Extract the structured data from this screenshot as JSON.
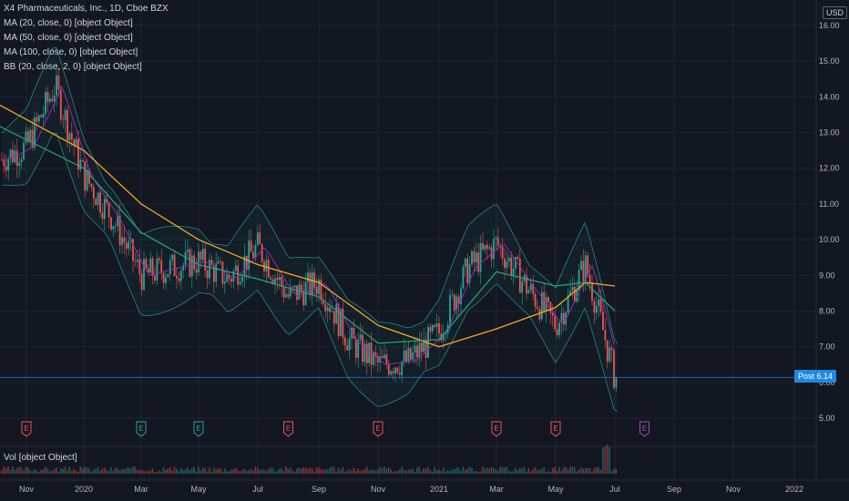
{
  "legend": {
    "title": "X4 Pharmaceuticals, Inc., 1D, Cboe BZX",
    "ma20": "MA (20, close, 0) [object Object]",
    "ma50": "MA (50, close, 0) [object Object]",
    "ma100": "MA (100, close, 0) [object Object]",
    "bb": "BB (20, close, 2, 0) [object Object]"
  },
  "volume_label": "Vol [object Object]",
  "currency": "USD",
  "price_tag": {
    "label": "Post",
    "value": "6.14"
  },
  "colors": {
    "background": "#131722",
    "grid": "#1f2433",
    "up": "#26a69a",
    "down": "#ef5350",
    "ma20": "#9c27b0",
    "ma50": "#26a17b",
    "ma100": "#f5a623",
    "bb": "#26a69a",
    "price_line": "#1e88e5",
    "earnings_red": "#ef5350",
    "earnings_green": "#26a69a",
    "earnings_purple": "#ab47bc"
  },
  "chart_data": {
    "type": "candlestick",
    "ylim": [
      5.0,
      16.0
    ],
    "y_ticks": [
      "16.00",
      "15.00",
      "14.00",
      "13.00",
      "12.00",
      "11.00",
      "10.00",
      "9.00",
      "8.00",
      "7.00",
      "6.00",
      "5.00"
    ],
    "x_ticks": [
      "Nov",
      "2020",
      "Mar",
      "May",
      "Jul",
      "Sep",
      "Nov",
      "2021",
      "Mar",
      "May",
      "Jul",
      "Sep",
      "Nov",
      "2022"
    ],
    "price_series": [
      {
        "date": "2019-10",
        "value": 12.2
      },
      {
        "date": "2019-11",
        "value": 12.6
      },
      {
        "date": "2019-12",
        "value": 14.3
      },
      {
        "date": "2020-01",
        "value": 11.8
      },
      {
        "date": "2020-02",
        "value": 10.6
      },
      {
        "date": "2020-03",
        "value": 9.0
      },
      {
        "date": "2020-04",
        "value": 9.2
      },
      {
        "date": "2020-05",
        "value": 9.4
      },
      {
        "date": "2020-06",
        "value": 8.9
      },
      {
        "date": "2020-07",
        "value": 9.8
      },
      {
        "date": "2020-08",
        "value": 8.4
      },
      {
        "date": "2020-09",
        "value": 8.8
      },
      {
        "date": "2020-10",
        "value": 7.2
      },
      {
        "date": "2020-11",
        "value": 6.5
      },
      {
        "date": "2020-12",
        "value": 6.6
      },
      {
        "date": "2021-01",
        "value": 7.4
      },
      {
        "date": "2021-02",
        "value": 9.2
      },
      {
        "date": "2021-03",
        "value": 9.9
      },
      {
        "date": "2021-04",
        "value": 8.7
      },
      {
        "date": "2021-05",
        "value": 7.6
      },
      {
        "date": "2021-06",
        "value": 9.3
      },
      {
        "date": "2021-06-15",
        "value": 7.9
      },
      {
        "date": "2021-07",
        "value": 6.14
      }
    ],
    "ma100_series": [
      {
        "date": "2019-10",
        "value": 13.8
      },
      {
        "date": "2020-01",
        "value": 12.5
      },
      {
        "date": "2020-03",
        "value": 11.0
      },
      {
        "date": "2020-05",
        "value": 10.0
      },
      {
        "date": "2020-07",
        "value": 9.3
      },
      {
        "date": "2020-09",
        "value": 8.8
      },
      {
        "date": "2020-11",
        "value": 7.6
      },
      {
        "date": "2021-01",
        "value": 7.0
      },
      {
        "date": "2021-03",
        "value": 7.5
      },
      {
        "date": "2021-05",
        "value": 8.1
      },
      {
        "date": "2021-06",
        "value": 8.8
      },
      {
        "date": "2021-07",
        "value": 8.7
      }
    ],
    "ma50_series": [
      {
        "date": "2019-10",
        "value": 13.2
      },
      {
        "date": "2020-01",
        "value": 12.0
      },
      {
        "date": "2020-03",
        "value": 10.2
      },
      {
        "date": "2020-05",
        "value": 9.3
      },
      {
        "date": "2020-07",
        "value": 8.9
      },
      {
        "date": "2020-09",
        "value": 8.4
      },
      {
        "date": "2020-11",
        "value": 7.1
      },
      {
        "date": "2021-01",
        "value": 7.2
      },
      {
        "date": "2021-03",
        "value": 9.1
      },
      {
        "date": "2021-05",
        "value": 8.7
      },
      {
        "date": "2021-06",
        "value": 8.8
      },
      {
        "date": "2021-07",
        "value": 8.0
      }
    ],
    "earnings": [
      {
        "date": "2019-11",
        "color": "red"
      },
      {
        "date": "2020-03",
        "color": "green"
      },
      {
        "date": "2020-05",
        "color": "green"
      },
      {
        "date": "2020-08",
        "color": "red"
      },
      {
        "date": "2020-11",
        "color": "red"
      },
      {
        "date": "2021-03",
        "color": "red"
      },
      {
        "date": "2021-05",
        "color": "red"
      },
      {
        "date": "2021-08",
        "color": "purple"
      }
    ],
    "last_price": 6.14
  }
}
